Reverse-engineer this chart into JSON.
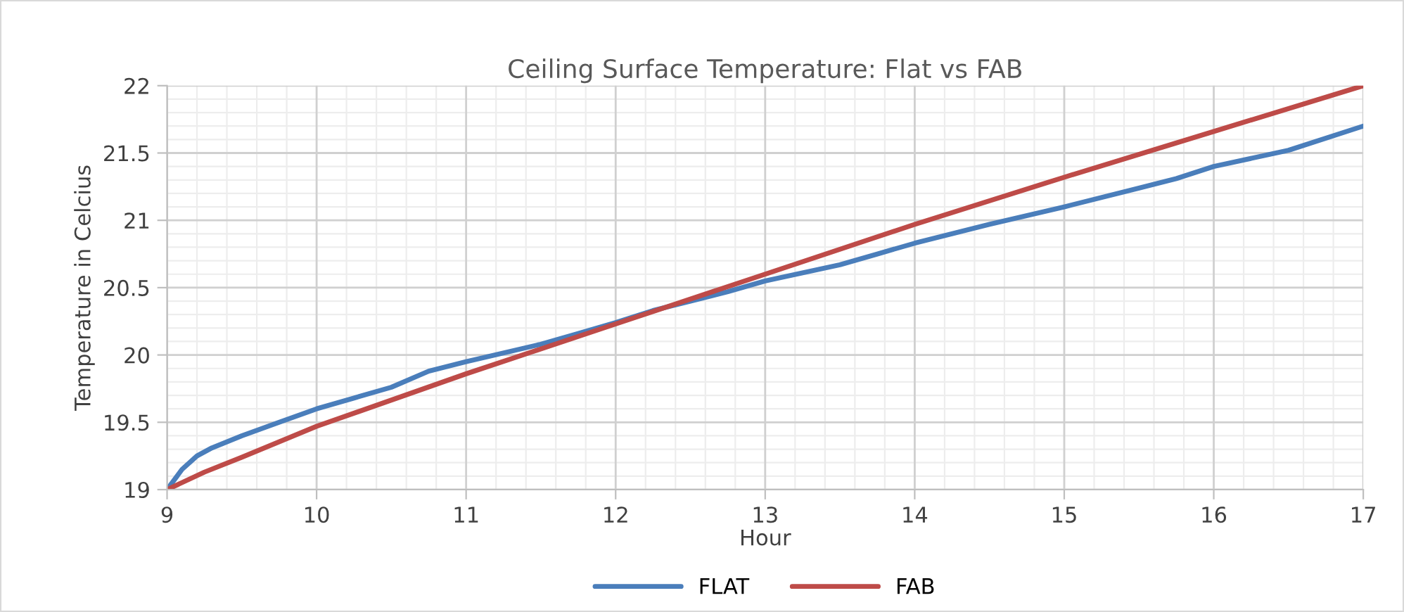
{
  "chart_data": {
    "type": "line",
    "title": "Ceiling Surface Temperature: Flat vs FAB",
    "xlabel": "Hour",
    "ylabel": "Temperature in Celcius",
    "xlim": [
      9,
      17
    ],
    "ylim": [
      19,
      22
    ],
    "xticks": [
      9,
      10,
      11,
      12,
      13,
      14,
      15,
      16,
      17
    ],
    "yticks": [
      19,
      19.5,
      20,
      20.5,
      21,
      21.5,
      22
    ],
    "grid": true,
    "legend": "bottom",
    "marker": "none",
    "line_style": "solid",
    "series": [
      {
        "name": "FLAT",
        "color": "#4a7ebb",
        "x": [
          9,
          9.1,
          9.2,
          9.3,
          9.5,
          9.75,
          10,
          10.25,
          10.5,
          10.75,
          11,
          11.5,
          11.75,
          12,
          12.25,
          12.5,
          12.75,
          13,
          13.5,
          13.75,
          14,
          14.5,
          15,
          15.5,
          15.75,
          16,
          16.5,
          17
        ],
        "values": [
          19.0,
          19.15,
          19.25,
          19.31,
          19.4,
          19.5,
          19.6,
          19.68,
          19.76,
          19.88,
          19.95,
          20.08,
          20.16,
          20.24,
          20.33,
          20.4,
          20.47,
          20.55,
          20.67,
          20.75,
          20.83,
          20.97,
          21.1,
          21.24,
          21.31,
          21.4,
          21.52,
          21.7
        ]
      },
      {
        "name": "FAB",
        "color": "#be4b48",
        "x": [
          9,
          9.25,
          9.5,
          10,
          11,
          12,
          13,
          14,
          15,
          16,
          17
        ],
        "values": [
          19.0,
          19.13,
          19.24,
          19.47,
          19.86,
          20.23,
          20.6,
          20.97,
          21.32,
          21.66,
          22.0
        ]
      }
    ]
  }
}
